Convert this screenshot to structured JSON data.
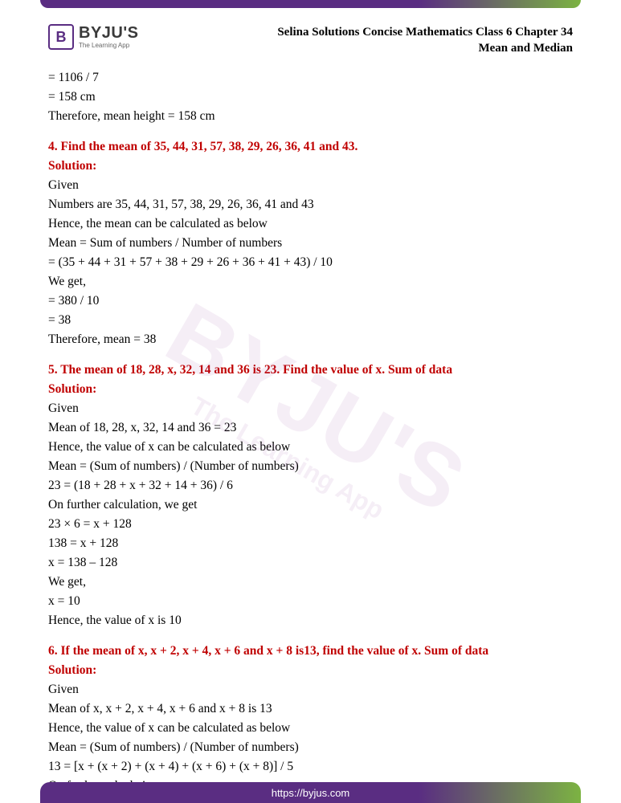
{
  "header": {
    "logo_letter": "B",
    "brand": "BYJU'S",
    "tagline": "The Learning App",
    "title_line1": "Selina Solutions Concise Mathematics Class 6 Chapter 34",
    "title_line2": "Mean and Median"
  },
  "watermark": {
    "brand": "BYJU'S",
    "tagline": "The Learning App"
  },
  "blocks": {
    "intro": {
      "l1": "= 1106 / 7",
      "l2": "= 158 cm",
      "l3": "Therefore, mean height = 158 cm"
    },
    "q4": {
      "question": "4. Find the mean of 35, 44, 31, 57, 38, 29, 26, 36, 41 and 43.",
      "sol_label": "Solution:",
      "l1": "Given",
      "l2": "Numbers are 35, 44, 31, 57, 38, 29, 26, 36, 41 and 43",
      "l3": "Hence, the mean can be calculated as below",
      "l4": "Mean = Sum of numbers / Number of numbers",
      "l5": "= (35 + 44 + 31 + 57 + 38 + 29 + 26 + 36 + 41 + 43) / 10",
      "l6": "We get,",
      "l7": "= 380 / 10",
      "l8": "= 38",
      "l9": "Therefore, mean = 38"
    },
    "q5": {
      "question": "5. The mean of 18, 28, x, 32, 14 and 36 is 23. Find the value of x. Sum of data",
      "sol_label": "Solution:",
      "l1": "Given",
      "l2": "Mean of 18, 28, x, 32, 14 and 36 = 23",
      "l3": "Hence, the value of x can be calculated as below",
      "l4": "Mean = (Sum of numbers) / (Number of numbers)",
      "l5": "23 = (18 + 28 + x + 32 + 14 + 36) / 6",
      "l6": "On further calculation, we get",
      "l7": "23 × 6 = x + 128",
      "l8": "138 = x + 128",
      "l9": "x = 138 – 128",
      "l10": "We get,",
      "l11": "x = 10",
      "l12": "Hence, the value of x is 10"
    },
    "q6": {
      "question": "6. If the mean of x, x + 2, x + 4, x + 6 and x + 8 is13, find the value of x. Sum of data",
      "sol_label": "Solution:",
      "l1": "Given",
      "l2": "Mean of x, x + 2, x + 4, x + 6 and x + 8 is 13",
      "l3": "Hence, the value of x can be calculated as below",
      "l4": "Mean = (Sum of numbers) / (Number of numbers)",
      "l5": "13 = [x + (x + 2) + (x + 4) + (x + 6) + (x + 8)] / 5",
      "l6": "On further calculation, we get"
    }
  },
  "footer": {
    "url": "https://byjus.com"
  },
  "colors": {
    "accent_red": "#c00000",
    "brand_purple": "#5a2d82",
    "brand_green": "#7cb342",
    "text": "#000000",
    "background": "#ffffff"
  },
  "typography": {
    "body_font": "Times New Roman",
    "body_size_pt": 12,
    "header_title_size_pt": 11,
    "question_bold": true
  }
}
